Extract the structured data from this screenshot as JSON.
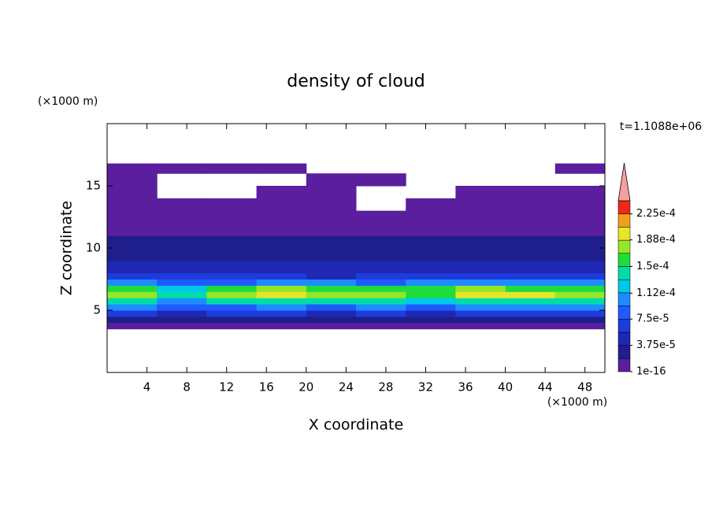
{
  "chart_data": {
    "type": "contour",
    "title": "density of cloud",
    "x_label": "X coordinate",
    "y_label": "Z coordinate",
    "x_unit": "(×1000 m)",
    "y_unit": "(×1000 m)",
    "annotation": "t=1.1088e+06",
    "xlim": [
      0,
      50
    ],
    "ylim": [
      0,
      20
    ],
    "xticks": [
      4,
      8,
      12,
      16,
      20,
      24,
      28,
      32,
      36,
      40,
      44,
      48
    ],
    "yticks": [
      5,
      10,
      15
    ],
    "x_edges": [
      0,
      5,
      10,
      15,
      20,
      25,
      30,
      35,
      40,
      45,
      50
    ],
    "z_edges": [
      3.5,
      4,
      4.5,
      5,
      5.5,
      6,
      6.5,
      7,
      7.5,
      8,
      9,
      10,
      11,
      12,
      13,
      14,
      15,
      16,
      16.8
    ],
    "values": [
      [
        1.2e-05,
        1e-05,
        1.1e-05,
        1.3e-05,
        1e-05,
        1.2e-05,
        1.1e-05,
        1e-05,
        1.2e-05,
        1.1e-05
      ],
      [
        3.2e-05,
        2.8e-05,
        3.5e-05,
        3e-05,
        2.5e-05,
        3.3e-05,
        3e-05,
        2.9e-05,
        3.4e-05,
        3.1e-05
      ],
      [
        6e-05,
        5e-05,
        5.8e-05,
        6.2e-05,
        5.5e-05,
        6e-05,
        5.2e-05,
        6.5e-05,
        5.9e-05,
        6.1e-05
      ],
      [
        9.5e-05,
        8e-05,
        9e-05,
        0.0001,
        9.2e-05,
        9.8e-05,
        8.5e-05,
        0.000102,
        9.6e-05,
        9.4e-05
      ],
      [
        0.000142,
        0.00011,
        0.000138,
        0.000145,
        0.000135,
        0.00014,
        0.00013,
        0.000148,
        0.000144,
        0.00014
      ],
      [
        0.000185,
        0.00014,
        0.000178,
        0.000195,
        0.00017,
        0.000182,
        0.000165,
        0.00019,
        0.000202,
        0.000186
      ],
      [
        0.00016,
        0.00012,
        0.00015,
        0.00017,
        0.000155,
        0.000162,
        0.000158,
        0.000172,
        0.000165,
        0.00016
      ],
      [
        0.0001,
        8.5e-05,
        9e-05,
        0.000108,
        9.5e-05,
        9e-05,
        0.000102,
        0.000105,
        9.8e-05,
        0.0001
      ],
      [
        6.5e-05,
        6.8e-05,
        6e-05,
        6.5e-05,
        5.5e-05,
        5.8e-05,
        6.5e-05,
        6.2e-05,
        7e-05,
        6e-05
      ],
      [
        4.5e-05,
        4.8e-05,
        4e-05,
        4.2e-05,
        4.4e-05,
        3.8e-05,
        4.5e-05,
        4.6e-05,
        4.8e-05,
        4.5e-05
      ],
      [
        3e-05,
        2.8e-05,
        3.2e-05,
        2.9e-05,
        3.1e-05,
        2.7e-05,
        3e-05,
        3.3e-05,
        3.1e-05,
        2.9e-05
      ],
      [
        2e-05,
        2.2e-05,
        1.9e-05,
        2.1e-05,
        2.3e-05,
        2e-05,
        1.9e-05,
        2.2e-05,
        2e-05,
        2.1e-05
      ],
      [
        1.5e-05,
        1.6e-05,
        1e-05,
        1.4e-05,
        1.2e-05,
        1.3e-05,
        1.5e-05,
        1.4e-05,
        1.6e-05,
        1.5e-05
      ],
      [
        1e-05,
        1.2e-05,
        1.1e-05,
        1e-05,
        1.2e-05,
        1.1e-05,
        1e-05,
        1.2e-05,
        1.1e-05,
        1e-05
      ],
      [
        8e-06,
        7e-06,
        9e-06,
        8e-06,
        7e-06,
        0,
        8e-06,
        9e-06,
        8e-06,
        7e-06
      ],
      [
        6e-06,
        0,
        0,
        5e-06,
        6e-06,
        0,
        0,
        5e-06,
        6e-06,
        5e-06
      ],
      [
        5e-06,
        0,
        0,
        0,
        4e-06,
        4e-06,
        0,
        0,
        0,
        0
      ],
      [
        4e-06,
        4e-06,
        4e-06,
        4e-06,
        0,
        0,
        0,
        0,
        0,
        3e-06
      ]
    ],
    "levels": [
      1e-16,
      1.875e-05,
      3.75e-05,
      5.625e-05,
      7.5e-05,
      9.375e-05,
      0.0001125,
      0.00013125,
      0.00015,
      0.00016875,
      0.0001875,
      0.00020625,
      0.000225,
      0.00024375
    ],
    "colors": [
      "#5a1e9e",
      "#1e1e8c",
      "#1e28b4",
      "#1e3cdc",
      "#1e5aff",
      "#1e8cff",
      "#00c8e6",
      "#00dcaa",
      "#1edc3c",
      "#96e628",
      "#e6e628",
      "#f0a01e",
      "#f02814",
      "#f4a0a0"
    ],
    "colorbar_ticks": [
      {
        "value": 1e-16,
        "label": "1e-16"
      },
      {
        "value": 3.75e-05,
        "label": "3.75e-5"
      },
      {
        "value": 7.5e-05,
        "label": "7.5e-5"
      },
      {
        "value": 0.000112,
        "label": "1.12e-4"
      },
      {
        "value": 0.00015,
        "label": "1.5e-4"
      },
      {
        "value": 0.000188,
        "label": "1.88e-4"
      },
      {
        "value": 0.000225,
        "label": "2.25e-4"
      }
    ]
  }
}
